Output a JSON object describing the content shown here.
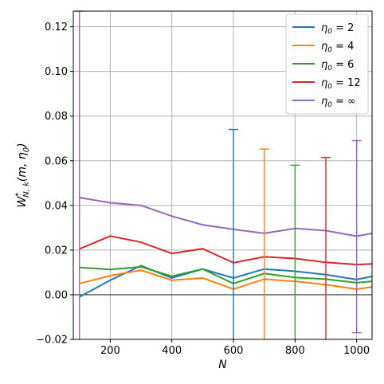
{
  "chart_data": {
    "type": "line",
    "xlabel": "N",
    "ylabel_parts": {
      "base": "W",
      "sup": "*",
      "sub": "N, k",
      "args": "(m, η",
      "args_sub": "0",
      "args_end": ")"
    },
    "xlim": [
      80,
      1050
    ],
    "ylim": [
      -0.02,
      0.127
    ],
    "xticks": [
      200,
      400,
      600,
      800,
      1000
    ],
    "xtick_labels": [
      "200",
      "400",
      "600",
      "800",
      "1000"
    ],
    "yticks": [
      -0.02,
      0.0,
      0.02,
      0.04,
      0.06,
      0.08,
      0.1,
      0.12
    ],
    "ytick_labels": [
      "−0.02",
      "0.00",
      "0.02",
      "0.04",
      "0.06",
      "0.08",
      "0.10",
      "0.12"
    ],
    "grid": true,
    "legend_position": "top-right",
    "x": [
      100,
      200,
      300,
      400,
      500,
      600,
      700,
      800,
      900,
      1000,
      1050
    ],
    "series": [
      {
        "name_base": "η",
        "name_sub": "0",
        "name_value": " = 2",
        "color": "#1f77b4",
        "values": [
          -0.001,
          0.0065,
          0.013,
          0.0075,
          0.0115,
          0.0075,
          0.0115,
          0.0105,
          0.009,
          0.0068,
          0.0082
        ],
        "errorbar": {
          "x": 600,
          "low": -0.02,
          "high": 0.074
        }
      },
      {
        "name_base": "η",
        "name_sub": "0",
        "name_value": " = 4",
        "color": "#ff7f0e",
        "values": [
          0.005,
          0.0085,
          0.011,
          0.0065,
          0.0075,
          0.0025,
          0.007,
          0.006,
          0.0045,
          0.0025,
          0.0035
        ],
        "errorbar": {
          "x": 700,
          "low": -0.02,
          "high": 0.0652
        }
      },
      {
        "name_base": "η",
        "name_sub": "0",
        "name_value": " = 6",
        "color": "#2ca02c",
        "values": [
          0.0122,
          0.0113,
          0.0125,
          0.0083,
          0.0115,
          0.005,
          0.0095,
          0.0077,
          0.007,
          0.0054,
          0.006
        ],
        "errorbar": {
          "x": 800,
          "low": -0.02,
          "high": 0.058
        }
      },
      {
        "name_base": "η",
        "name_sub": "0",
        "name_value": " = 12",
        "color": "#d62728",
        "values": [
          0.0205,
          0.0263,
          0.0235,
          0.0185,
          0.0206,
          0.0143,
          0.017,
          0.0162,
          0.0145,
          0.0135,
          0.0138
        ],
        "errorbar": {
          "x": 900,
          "low": -0.02,
          "high": 0.0615
        }
      },
      {
        "name_base": "η",
        "name_sub": "0",
        "name_value": " = ∞",
        "color": "#9467bd",
        "values": [
          0.0435,
          0.0412,
          0.04,
          0.0352,
          0.0313,
          0.0293,
          0.0275,
          0.0297,
          0.0287,
          0.0262,
          0.0275
        ],
        "errorbar": {
          "x": 1000,
          "low": -0.017,
          "high": 0.069
        },
        "errorbar_extra": {
          "x": 100,
          "low": -0.02,
          "high": 0.127
        }
      }
    ]
  }
}
